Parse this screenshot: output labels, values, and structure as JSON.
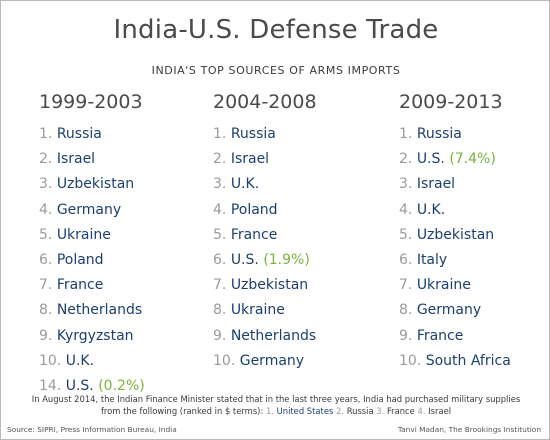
{
  "title": "India-U.S. Defense Trade",
  "subtitle": "INDIA'S TOP SOURCES OF ARMS IMPORTS",
  "columns": [
    {
      "period": "1999-2003",
      "items": [
        {
          "rank": "1.",
          "country": "Russia",
          "pct": ""
        },
        {
          "rank": "2.",
          "country": "Israel",
          "pct": ""
        },
        {
          "rank": "3.",
          "country": "Uzbekistan",
          "pct": ""
        },
        {
          "rank": "4.",
          "country": "Germany",
          "pct": ""
        },
        {
          "rank": "5.",
          "country": "Ukraine",
          "pct": ""
        },
        {
          "rank": "6.",
          "country": "Poland",
          "pct": ""
        },
        {
          "rank": "7.",
          "country": "France",
          "pct": ""
        },
        {
          "rank": "8.",
          "country": "Netherlands",
          "pct": ""
        },
        {
          "rank": "9.",
          "country": "Kyrgyzstan",
          "pct": ""
        },
        {
          "rank": "10.",
          "country": "U.K.",
          "pct": ""
        },
        {
          "rank": "14.",
          "country": "U.S.",
          "pct": "(0.2%)"
        }
      ]
    },
    {
      "period": "2004-2008",
      "items": [
        {
          "rank": "1.",
          "country": "Russia",
          "pct": ""
        },
        {
          "rank": "2.",
          "country": "Israel",
          "pct": ""
        },
        {
          "rank": "3.",
          "country": "U.K.",
          "pct": ""
        },
        {
          "rank": "4.",
          "country": "Poland",
          "pct": ""
        },
        {
          "rank": "5.",
          "country": "France",
          "pct": ""
        },
        {
          "rank": "6.",
          "country": "U.S.",
          "pct": "(1.9%)"
        },
        {
          "rank": "7.",
          "country": "Uzbekistan",
          "pct": ""
        },
        {
          "rank": "8.",
          "country": "Ukraine",
          "pct": ""
        },
        {
          "rank": "9.",
          "country": "Netherlands",
          "pct": ""
        },
        {
          "rank": "10.",
          "country": "Germany",
          "pct": ""
        }
      ]
    },
    {
      "period": "2009-2013",
      "items": [
        {
          "rank": "1.",
          "country": "Russia",
          "pct": ""
        },
        {
          "rank": "2.",
          "country": "U.S.",
          "pct": "(7.4%)"
        },
        {
          "rank": "3.",
          "country": "Israel",
          "pct": ""
        },
        {
          "rank": "4.",
          "country": "U.K.",
          "pct": ""
        },
        {
          "rank": "5.",
          "country": "Uzbekistan",
          "pct": ""
        },
        {
          "rank": "6.",
          "country": "Italy",
          "pct": ""
        },
        {
          "rank": "7.",
          "country": "Ukraine",
          "pct": ""
        },
        {
          "rank": "8.",
          "country": "Germany",
          "pct": ""
        },
        {
          "rank": "9.",
          "country": "France",
          "pct": ""
        },
        {
          "rank": "10.",
          "country": "South Africa",
          "pct": ""
        }
      ]
    }
  ],
  "note": {
    "line1": "In August 2014, the Indian Finance Minister stated that in the last three years, India had purchased military supplies",
    "line2_prefix": "from the following (ranked in $ terms):",
    "ranking": [
      {
        "rank": "1.",
        "country": "United States"
      },
      {
        "rank": "2.",
        "country": "Russia"
      },
      {
        "rank": "3.",
        "country": "France"
      },
      {
        "rank": "4.",
        "country": "Israel"
      }
    ]
  },
  "source": "Source: SIPRI, Press Information Bureau, India",
  "credit": "Tanvi Madan, The Brookings Institution",
  "colors": {
    "rank": "#9a9a9a",
    "country": "#1c3f73",
    "percent": "#78b43c",
    "heading": "#4a4a4a"
  }
}
